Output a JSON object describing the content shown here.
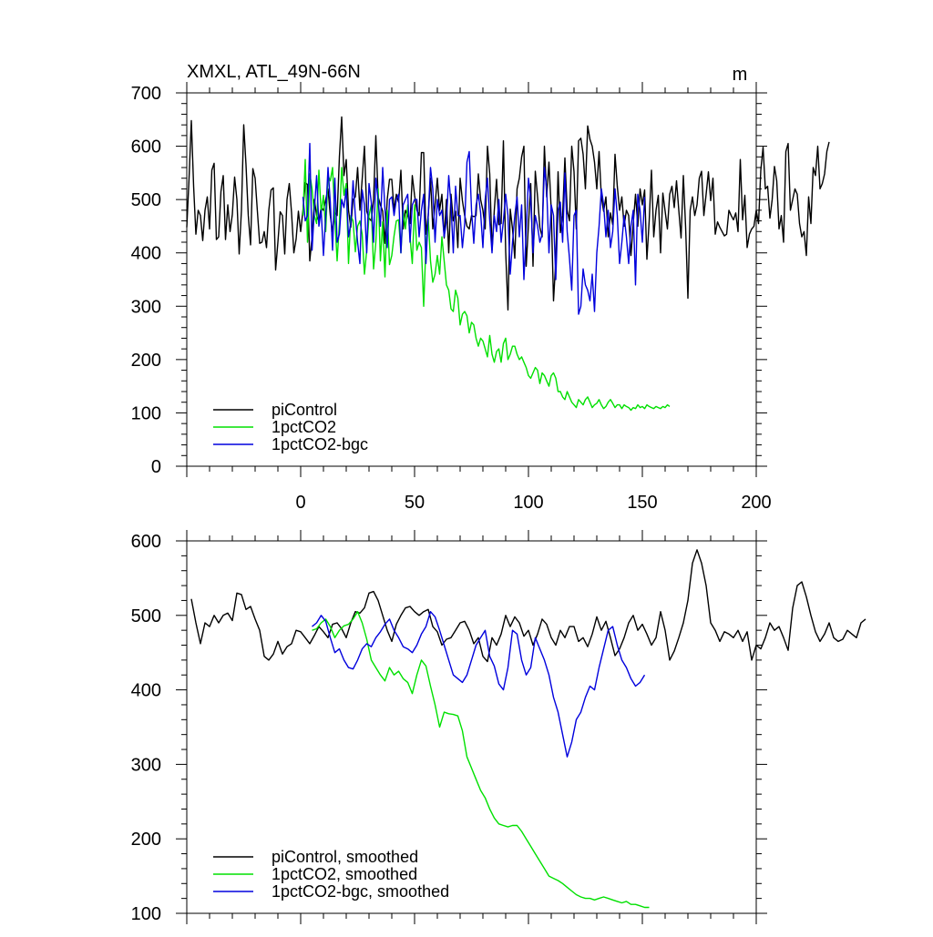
{
  "chart_data": [
    {
      "type": "line",
      "title": "XMXL, ATL_49N-66N",
      "units": "m",
      "xlim": [
        -50,
        200
      ],
      "ylim": [
        0,
        700
      ],
      "x_ticks": [
        "0",
        "50",
        "100",
        "150",
        "200"
      ],
      "y_ticks": [
        "0",
        "100",
        "200",
        "300",
        "400",
        "500",
        "600",
        "700"
      ],
      "legend_position": "bottom-left",
      "legend": [
        "piControl",
        "1pctCO2",
        "1pctCO2-bgc"
      ],
      "series": [
        {
          "name": "piControl",
          "color": "#000000",
          "x_start": -50,
          "values": [
            448,
            540,
            648,
            525,
            435,
            480,
            470,
            423,
            480,
            505,
            445,
            555,
            568,
            425,
            430,
            515,
            545,
            425,
            490,
            440,
            472,
            542,
            500,
            398,
            480,
            640,
            565,
            470,
            415,
            558,
            540,
            478,
            418,
            420,
            440,
            410,
            480,
            518,
            522,
            368,
            420,
            477,
            470,
            398,
            500,
            530,
            475,
            400,
            426,
            478,
            440,
            480,
            532,
            528,
            385,
            430,
            500,
            470,
            460,
            485,
            480,
            500,
            520,
            470,
            440,
            475,
            470,
            580,
            655,
            545,
            575,
            480,
            448,
            500,
            505,
            560,
            480,
            538,
            600,
            478,
            465,
            460,
            500,
            620,
            505,
            490,
            478,
            418,
            500,
            538,
            538,
            480,
            510,
            495,
            555,
            445,
            480,
            470,
            455,
            545,
            508,
            480,
            470,
            588,
            588,
            435,
            470,
            540,
            445,
            490,
            540,
            480,
            510,
            428,
            500,
            400,
            510,
            460,
            478,
            410,
            540,
            498,
            470,
            450,
            445,
            470,
            468,
            470,
            548,
            500,
            480,
            445,
            600,
            548,
            405,
            480,
            538,
            453,
            455,
            610,
            402,
            293,
            482,
            445,
            390,
            520,
            540,
            580,
            600,
            375,
            453,
            530,
            375,
            553,
            505,
            448,
            430,
            600,
            505,
            570,
            480,
            310,
            385,
            552,
            438,
            470,
            578,
            480,
            460,
            600,
            552,
            445,
            610,
            615,
            585,
            520,
            638,
            613,
            600,
            570,
            520,
            590,
            505,
            478,
            505,
            430,
            475,
            453,
            585,
            525,
            480,
            505,
            450,
            480,
            470,
            395,
            455,
            510,
            450,
            520,
            490,
            518,
            388,
            460,
            555,
            430,
            480,
            508,
            400,
            512,
            478,
            445,
            510,
            525,
            485,
            535,
            480,
            428,
            545,
            448,
            315,
            480,
            505,
            470,
            490,
            540,
            553,
            470,
            510,
            552,
            498,
            540,
            435,
            458,
            448,
            440,
            432,
            435,
            480,
            470,
            462,
            475,
            440,
            575,
            462,
            508,
            410,
            435,
            445,
            450,
            480,
            455,
            555,
            598,
            520,
            525,
            465,
            500,
            562,
            535,
            445,
            470,
            420,
            590,
            605,
            480,
            500,
            520,
            510,
            455,
            430,
            440,
            395,
            505,
            455,
            560,
            545,
            600,
            520,
            530,
            548,
            590,
            608
          ]
        },
        {
          "name": "1pctCO2",
          "color": "#00e000",
          "x_start": 1,
          "values": [
            470,
            575,
            420,
            548,
            520,
            470,
            455,
            555,
            475,
            508,
            440,
            545,
            535,
            560,
            465,
            385,
            455,
            560,
            508,
            530,
            380,
            470,
            460,
            402,
            450,
            460,
            435,
            360,
            405,
            470,
            490,
            370,
            420,
            520,
            385,
            458,
            355,
            480,
            378,
            395,
            432,
            460,
            462,
            400,
            480,
            445,
            490,
            430,
            380,
            490,
            405,
            420,
            410,
            300,
            415,
            465,
            385,
            345,
            360,
            395,
            360,
            430,
            385,
            340,
            330,
            295,
            290,
            330,
            315,
            265,
            285,
            290,
            282,
            250,
            270,
            265,
            240,
            225,
            240,
            235,
            220,
            205,
            245,
            210,
            195,
            215,
            220,
            195,
            230,
            240,
            200,
            210,
            225,
            225,
            210,
            200,
            205,
            195,
            185,
            170,
            165,
            175,
            185,
            180,
            155,
            175,
            170,
            160,
            150,
            170,
            175,
            165,
            140,
            140,
            130,
            125,
            140,
            130,
            120,
            115,
            110,
            125,
            120,
            115,
            125,
            130,
            120,
            110,
            115,
            118,
            125,
            115,
            108,
            112,
            120,
            125,
            118,
            110,
            115,
            115,
            108,
            115,
            112,
            110,
            105,
            110,
            108,
            115,
            110,
            112,
            108,
            115,
            112,
            110,
            108,
            112,
            110,
            108,
            112,
            110,
            115,
            112
          ]
        },
        {
          "name": "1pctCO2-bgc",
          "color": "#0000dd",
          "x_start": 1,
          "values": [
            505,
            460,
            470,
            605,
            405,
            480,
            545,
            450,
            480,
            395,
            470,
            560,
            495,
            405,
            540,
            420,
            435,
            500,
            485,
            520,
            430,
            455,
            535,
            470,
            420,
            380,
            518,
            490,
            400,
            530,
            495,
            420,
            540,
            500,
            450,
            560,
            482,
            410,
            500,
            505,
            470,
            500,
            510,
            400,
            490,
            500,
            510,
            420,
            490,
            500,
            500,
            430,
            480,
            510,
            380,
            470,
            560,
            520,
            420,
            500,
            470,
            480,
            430,
            460,
            545,
            490,
            400,
            525,
            470,
            470,
            410,
            455,
            570,
            590,
            480,
            418,
            490,
            510,
            475,
            410,
            500,
            540,
            460,
            400,
            470,
            440,
            500,
            420,
            460,
            510,
            470,
            360,
            420,
            470,
            505,
            430,
            490,
            350,
            440,
            540,
            500,
            400,
            470,
            450,
            420,
            435,
            560,
            520,
            400,
            490,
            470,
            350,
            480,
            495,
            420,
            550,
            440,
            390,
            330,
            470,
            480,
            285,
            300,
            370,
            340,
            330,
            310,
            360,
            290,
            400,
            450,
            520,
            490,
            430,
            480,
            410,
            440,
            520,
            470,
            380,
            420,
            470,
            430,
            380,
            450,
            480,
            340,
            510,
            480,
            420,
            505
          ]
        }
      ]
    },
    {
      "type": "line",
      "title": "",
      "xlim": [
        -50,
        200
      ],
      "ylim": [
        100,
        600
      ],
      "y_ticks": [
        "100",
        "200",
        "300",
        "400",
        "500",
        "600"
      ],
      "legend_position": "bottom-left",
      "legend": [
        "piControl, smoothed",
        "1pctCO2, smoothed",
        "1pctCO2-bgc, smoothed"
      ],
      "series": [
        {
          "name": "piControl, smoothed",
          "color": "#000000",
          "x_start": -48,
          "step": 2,
          "values": [
            522,
            490,
            462,
            490,
            485,
            500,
            490,
            500,
            503,
            493,
            530,
            528,
            508,
            512,
            495,
            480,
            445,
            440,
            448,
            465,
            448,
            458,
            462,
            480,
            478,
            470,
            462,
            473,
            485,
            478,
            470,
            488,
            490,
            482,
            470,
            490,
            505,
            503,
            510,
            530,
            532,
            520,
            500,
            480,
            465,
            488,
            500,
            510,
            512,
            505,
            500,
            505,
            508,
            485,
            478,
            460,
            468,
            470,
            480,
            490,
            492,
            480,
            462,
            470,
            445,
            438,
            470,
            460,
            475,
            500,
            485,
            498,
            490,
            472,
            480,
            460,
            475,
            495,
            488,
            470,
            460,
            480,
            470,
            485,
            485,
            465,
            470,
            458,
            475,
            498,
            480,
            492,
            470,
            446,
            455,
            470,
            490,
            500,
            480,
            488,
            475,
            460,
            470,
            505,
            480,
            440,
            452,
            470,
            490,
            520,
            570,
            588,
            570,
            540,
            490,
            480,
            465,
            478,
            475,
            470,
            480,
            465,
            478,
            440,
            460,
            455,
            470,
            490,
            480,
            485,
            470,
            453,
            510,
            540,
            545,
            525,
            500,
            478,
            465,
            475,
            490,
            470,
            465,
            468,
            480,
            475,
            470,
            490,
            495
          ]
        },
        {
          "name": "1pctCO2, smoothed",
          "color": "#00e000",
          "x_start": 5,
          "step": 2,
          "values": [
            480,
            482,
            490,
            495,
            485,
            470,
            480,
            486,
            488,
            495,
            505,
            490,
            468,
            440,
            430,
            420,
            412,
            430,
            420,
            425,
            415,
            410,
            395,
            420,
            440,
            432,
            405,
            380,
            350,
            370,
            368,
            367,
            365,
            345,
            310,
            295,
            280,
            265,
            255,
            240,
            228,
            220,
            218,
            216,
            218,
            218,
            210,
            200,
            190,
            180,
            170,
            160,
            150,
            147,
            144,
            140,
            135,
            130,
            125,
            122,
            120,
            120,
            118,
            120,
            122,
            120,
            118,
            116,
            114,
            116,
            112,
            112,
            110,
            108,
            108
          ]
        },
        {
          "name": "1pctCO2-bgc, smoothed",
          "color": "#0000dd",
          "x_start": 5,
          "step": 2,
          "values": [
            485,
            490,
            500,
            492,
            470,
            450,
            455,
            440,
            430,
            428,
            440,
            455,
            462,
            458,
            470,
            478,
            488,
            495,
            480,
            470,
            458,
            455,
            450,
            460,
            475,
            485,
            505,
            498,
            480,
            460,
            440,
            420,
            415,
            410,
            420,
            440,
            460,
            470,
            480,
            445,
            432,
            408,
            400,
            430,
            480,
            475,
            440,
            420,
            430,
            470,
            455,
            440,
            420,
            390,
            370,
            340,
            310,
            330,
            360,
            370,
            390,
            405,
            400,
            430,
            455,
            480,
            485,
            460,
            440,
            430,
            415,
            405,
            410,
            420
          ]
        }
      ]
    }
  ]
}
